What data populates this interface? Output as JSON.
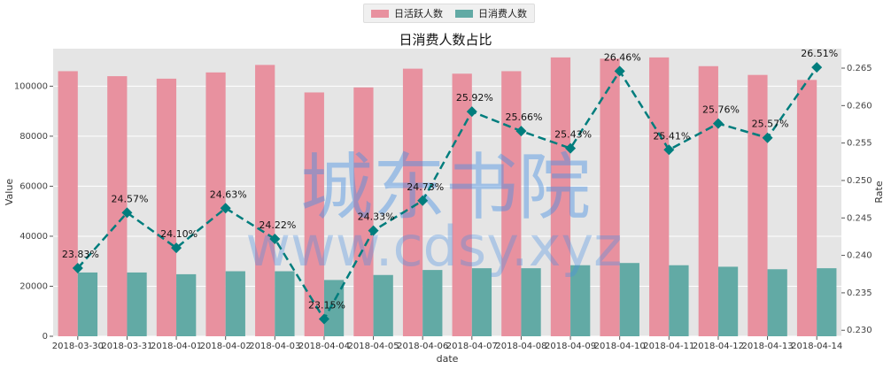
{
  "chart_data": {
    "type": "bar+line",
    "title": "日消费人数占比",
    "xlabel": "date",
    "ylabel_left": "Value",
    "ylabel_right": "Rate",
    "categories": [
      "2018-03-30",
      "2018-03-31",
      "2018-04-01",
      "2018-04-02",
      "2018-04-03",
      "2018-04-04",
      "2018-04-05",
      "2018-04-06",
      "2018-04-07",
      "2018-04-08",
      "2018-04-09",
      "2018-04-10",
      "2018-04-11",
      "2018-04-12",
      "2018-04-13",
      "2018-04-14"
    ],
    "series": [
      {
        "name": "日活跃人数",
        "type": "bar",
        "axis": "left",
        "color": "#e8919f",
        "values": [
          106000,
          104000,
          103000,
          105500,
          108500,
          97500,
          99500,
          107000,
          105000,
          106000,
          111500,
          111000,
          111500,
          108000,
          104500,
          102500
        ]
      },
      {
        "name": "日消费人数",
        "type": "bar",
        "axis": "left",
        "color": "#62aaa5",
        "values": [
          25500,
          25500,
          24800,
          26000,
          26000,
          22500,
          24500,
          26500,
          27200,
          27200,
          28400,
          29300,
          28400,
          27800,
          26800,
          27200
        ]
      },
      {
        "type": "line",
        "axis": "right",
        "color": "#007d7d",
        "values": [
          0.2383,
          0.2457,
          0.241,
          0.2463,
          0.2422,
          0.2315,
          0.2433,
          0.2473,
          0.2592,
          0.2566,
          0.2543,
          0.2646,
          0.2541,
          0.2576,
          0.2557,
          0.2651
        ],
        "labels": [
          "23.83%",
          "24.57%",
          "24.10%",
          "24.63%",
          "24.22%",
          "23.15%",
          "24.33%",
          "24.73%",
          "25.92%",
          "25.66%",
          "25.43%",
          "26.46%",
          "25.41%",
          "25.76%",
          "25.57%",
          "26.51%"
        ]
      }
    ],
    "ylim_left": [
      0,
      115000
    ],
    "yticks_left": [
      0,
      20000,
      40000,
      60000,
      80000,
      100000
    ],
    "ylim_right": [
      0.2292,
      0.2676
    ],
    "yticks_right": [
      0.23,
      0.235,
      0.24,
      0.245,
      0.25,
      0.255,
      0.26,
      0.265
    ],
    "grid": true,
    "legend_position": "top-center",
    "watermark": "城东书院 www.cdsy.xyz",
    "plot_background": "#e5e5e5"
  }
}
